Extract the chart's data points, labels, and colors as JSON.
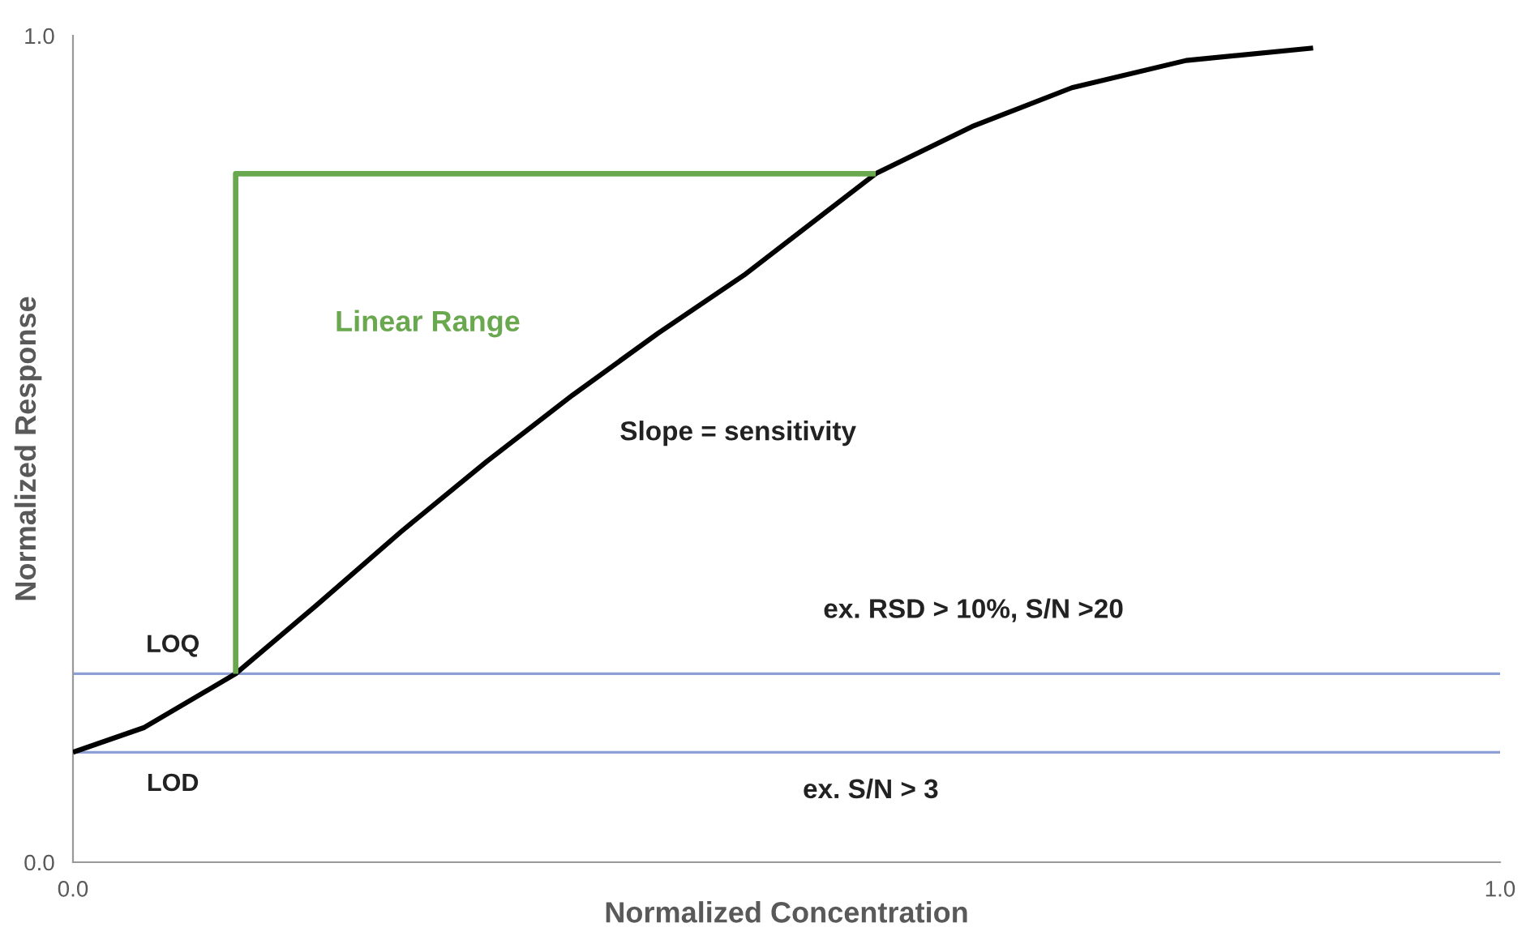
{
  "chart_data": {
    "type": "line",
    "xlabel": "Normalized Concentration",
    "ylabel": "Normalized Response",
    "xlim": [
      0,
      1
    ],
    "ylim": [
      0,
      1
    ],
    "xticks": [
      {
        "value": 0,
        "label": "0.0"
      },
      {
        "value": 1,
        "label": "1.0"
      }
    ],
    "yticks": [
      {
        "value": 0,
        "label": "0.0"
      },
      {
        "value": 1,
        "label": "1.0"
      }
    ],
    "grid": false,
    "legend": false,
    "marker": "none",
    "line_style": "solid",
    "series": [
      {
        "color": "#000000",
        "x": [
          0,
          0.05,
          0.114,
          0.17,
          0.23,
          0.29,
          0.35,
          0.41,
          0.47,
          0.5625,
          0.63,
          0.7,
          0.78,
          0.869
        ],
        "values": [
          0.133,
          0.163,
          0.228,
          0.31,
          0.4,
          0.485,
          0.565,
          0.64,
          0.71,
          0.833,
          0.89,
          0.937,
          0.97,
          0.985
        ]
      },
      {
        "name": "Linear Range",
        "color": "#6aa84f",
        "x": [
          0.114,
          0.114,
          0.5625
        ],
        "values": [
          0.228,
          0.833,
          0.833
        ]
      }
    ],
    "ref_lines": [
      {
        "axis": "y",
        "value": 0.228,
        "label": "LOQ",
        "color": "#8e9fd6"
      },
      {
        "axis": "y",
        "value": 0.133,
        "label": "LOD",
        "color": "#8e9fd6"
      }
    ],
    "annotations": [
      "Slope = sensitivity",
      "ex. RSD > 10%, S/N >20",
      "ex. S/N > 3"
    ]
  }
}
